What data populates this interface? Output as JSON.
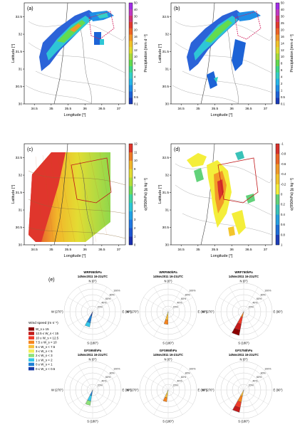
{
  "panels": [
    {
      "label": "(a)",
      "xlabel": "Longitude [°]",
      "ylabel": "Latitude [°]",
      "xticks": [
        "34.5",
        "35",
        "35.5",
        "36",
        "36.5",
        "37"
      ],
      "yticks": [
        "30",
        "30.5",
        "31",
        "31.5",
        "32",
        "32.5"
      ],
      "colorbar": {
        "label": "Precipitation [mm d⁻¹]",
        "ticks": [
          "0.1",
          "0.5",
          "1",
          "2",
          "4",
          "6",
          "8",
          "10",
          "12",
          "14",
          "16",
          "20",
          "25",
          "30",
          "40",
          "50"
        ],
        "colors": [
          "#1a3cb8",
          "#1d63d6",
          "#1f8ee6",
          "#27b6e6",
          "#35d0c7",
          "#3cd88b",
          "#63db4f",
          "#a7dc3a",
          "#dede30",
          "#f2c32a",
          "#f2962a",
          "#ee6326",
          "#e23a30",
          "#d43476",
          "#c13ac2",
          "#a22ee6"
        ]
      }
    },
    {
      "label": "(b)",
      "xlabel": "Longitude [°]",
      "ylabel": "Latitude [°]",
      "xticks": [
        "34.5",
        "35",
        "35.5",
        "36",
        "36.5",
        "37"
      ],
      "yticks": [
        "30",
        "30.5",
        "31",
        "31.5",
        "32",
        "32.5"
      ],
      "colorbar": {
        "label": "Precipitation [mm d⁻¹]",
        "ticks": [
          "0.1",
          "0.5",
          "1",
          "2",
          "4",
          "6",
          "8",
          "10",
          "12",
          "14",
          "16",
          "20",
          "25",
          "30",
          "40",
          "50"
        ],
        "colors": [
          "#1a3cb8",
          "#1d63d6",
          "#1f8ee6",
          "#27b6e6",
          "#35d0c7",
          "#3cd88b",
          "#63db4f",
          "#a7dc3a",
          "#dede30",
          "#f2c32a",
          "#f2962a",
          "#ee6326",
          "#e23a30",
          "#d43476",
          "#c13ac2",
          "#a22ee6"
        ]
      }
    },
    {
      "label": "(c)",
      "xlabel": "Longitude [°]",
      "ylabel": "Latitude [°]",
      "xticks": [
        "34.5",
        "35",
        "35.5",
        "36",
        "36.5",
        "37"
      ],
      "yticks": [
        "30",
        "30.5",
        "31",
        "31.5",
        "32",
        "32.5"
      ],
      "colorbar": {
        "label": "q(950hPa) [g kg⁻¹]",
        "ticks": [
          "0",
          "1",
          "2",
          "3",
          "4",
          "5",
          "6",
          "7",
          "8",
          "9",
          "10",
          "11",
          "12"
        ],
        "colors": [
          "#1a2fb0",
          "#1d55d0",
          "#2078e2",
          "#22a2e6",
          "#2ec6d6",
          "#3fd6a2",
          "#6edb58",
          "#b3dd3a",
          "#e3dc33",
          "#f2b62a",
          "#ee7c26",
          "#e0362c"
        ]
      }
    },
    {
      "label": "(d)",
      "xlabel": "Longitude [°]",
      "ylabel": "Latitude [°]",
      "xticks": [
        "34.5",
        "35",
        "35.5",
        "36",
        "36.5",
        "37"
      ],
      "yticks": [
        "30",
        "30.5",
        "31",
        "31.5",
        "32",
        "32.5"
      ],
      "colorbar": {
        "label": "q(950hPa) [g kg⁻¹]",
        "ticks": [
          "1",
          "0.8",
          "0.6",
          "0.4",
          "0.2",
          "0",
          "-0.2",
          "-0.4",
          "-0.6",
          "-0.8",
          "-1"
        ],
        "colors": [
          "#1e3fb8",
          "#1f6fd8",
          "#26a0e0",
          "#3ac2b8",
          "#62d27a",
          "#f4ee3a",
          "#f3c52c",
          "#f29a28",
          "#ec6526",
          "#d8322c"
        ]
      }
    }
  ],
  "rose_panel": {
    "label": "(e)",
    "legend": {
      "title": "Wind speed (m s⁻¹)",
      "items": [
        {
          "label": "W_s ≥ 15",
          "color": "#8b0000"
        },
        {
          "label": "12.5 ≤ W_s < 15",
          "color": "#c41a1a"
        },
        {
          "label": "10 ≤ W_s < 12.5",
          "color": "#ee3b2a"
        },
        {
          "label": "7.5 ≤ W_s < 10",
          "color": "#f6841e"
        },
        {
          "label": "5 ≤ W_s < 7.5",
          "color": "#f9c03a"
        },
        {
          "label": "3 ≤ W_s < 5",
          "color": "#f3ee58"
        },
        {
          "label": "2 ≤ W_s < 3",
          "color": "#8fe27a"
        },
        {
          "label": "1 ≤ W_s < 2",
          "color": "#35c7e9"
        },
        {
          "label": "0 ≤ W_s < 1",
          "color": "#1e7fd6"
        },
        {
          "label": "0 ≤ W_s < 0.5",
          "color": "#1a3ba6"
        }
      ]
    },
    "roses": [
      {
        "title1": "WRF950hPa",
        "title2": "14Nov2011 16-21UTC",
        "rings": [
          "20%",
          "40%",
          "60%",
          "80%",
          "100%"
        ],
        "compass": {
          "n": "N (0°)",
          "e": "E (90°)",
          "s": "S (180°)",
          "w": "W (270°)"
        }
      },
      {
        "title1": "WRF950hPa",
        "title2": "14Nov2011 16-21UTC",
        "rings": [
          "20%",
          "40%",
          "60%",
          "80%",
          "100%"
        ],
        "compass": {
          "n": "N (0°)",
          "e": "E (90°)",
          "s": "S (180°)",
          "w": "W (270°)"
        }
      },
      {
        "title1": "WRF750hPa",
        "title2": "14Nov2011 16-21UTC",
        "rings": [
          "20%",
          "40%",
          "60%",
          "80%",
          "100%"
        ],
        "compass": {
          "n": "N (0°)",
          "e": "E (90°)",
          "s": "S (180°)",
          "w": "W (270°)"
        }
      },
      {
        "title1": "GFS950hPa",
        "title2": "14Nov2011 16-21UTC",
        "rings": [
          "20%",
          "40%",
          "60%",
          "80%",
          "100%"
        ],
        "compass": {
          "n": "N (0°)",
          "e": "E (90°)",
          "s": "S (180°)",
          "w": "W (270°)"
        }
      },
      {
        "title1": "GFS950hPa",
        "title2": "14Nov2011 16-21UTC",
        "rings": [
          "20%",
          "40%",
          "60%",
          "80%",
          "100%"
        ],
        "compass": {
          "n": "N (0°)",
          "e": "E (90°)",
          "s": "S (180°)",
          "w": "W (270°)"
        }
      },
      {
        "title1": "GFS750hPa",
        "title2": "14Nov2011 16-21UTC",
        "rings": [
          "20%",
          "40%",
          "60%",
          "80%",
          "100%"
        ],
        "compass": {
          "n": "N (0°)",
          "e": "E (90°)",
          "s": "S (180°)",
          "w": "W (270°)"
        }
      }
    ]
  },
  "chart_data": [
    {
      "type": "heatmap",
      "panel": "(a)",
      "xlabel": "Longitude [°]",
      "ylabel": "Latitude [°]",
      "xlim": [
        34.2,
        37.2
      ],
      "ylim": [
        30,
        32.9
      ],
      "colorbar_label": "Precipitation [mm d⁻¹]"
    },
    {
      "type": "heatmap",
      "panel": "(b)",
      "xlabel": "Longitude [°]",
      "ylabel": "Latitude [°]",
      "xlim": [
        34.2,
        37.2
      ],
      "ylim": [
        30,
        32.9
      ],
      "colorbar_label": "Precipitation [mm d⁻¹]"
    },
    {
      "type": "heatmap",
      "panel": "(c)",
      "xlabel": "Longitude [°]",
      "ylabel": "Latitude [°]",
      "xlim": [
        34.2,
        37.2
      ],
      "ylim": [
        30,
        32.9
      ],
      "colorbar_label": "q(950hPa) [g kg⁻¹]"
    },
    {
      "type": "heatmap",
      "panel": "(d)",
      "xlabel": "Longitude [°]",
      "ylabel": "Latitude [°]",
      "xlim": [
        34.2,
        37.2
      ],
      "ylim": [
        30,
        32.9
      ],
      "colorbar_label": "q(950hPa) [g kg⁻¹]"
    },
    {
      "type": "wind-rose",
      "panel": "(e)",
      "roses": [
        {
          "name": "WRF950hPa",
          "direction_deg": 200,
          "frequency_pct": 55,
          "segments_pct": [
            15,
            25,
            15
          ],
          "segment_colors": [
            "#1a3ba6",
            "#1e7fd6",
            "#35c7e9"
          ]
        },
        {
          "name": "WRF950hPa",
          "direction_deg": 190,
          "frequency_pct": 45,
          "segments_pct": [
            12,
            18,
            15
          ],
          "segment_colors": [
            "#f3ee58",
            "#f9c03a",
            "#f6841e"
          ]
        },
        {
          "name": "WRF750hPa",
          "direction_deg": 200,
          "frequency_pct": 85,
          "segments_pct": [
            20,
            25,
            22,
            18
          ],
          "segment_colors": [
            "#f6841e",
            "#ee3b2a",
            "#c41a1a",
            "#8b0000"
          ]
        },
        {
          "name": "GFS950hPa",
          "direction_deg": 198,
          "frequency_pct": 55,
          "segments_pct": [
            20,
            20,
            15
          ],
          "segment_colors": [
            "#1e7fd6",
            "#35c7e9",
            "#8fe27a"
          ]
        },
        {
          "name": "GFS950hPa",
          "direction_deg": 196,
          "frequency_pct": 42,
          "segments_pct": [
            14,
            14,
            14
          ],
          "segment_colors": [
            "#f3ee58",
            "#f9c03a",
            "#f6841e"
          ]
        },
        {
          "name": "GFS750hPa",
          "direction_deg": 200,
          "frequency_pct": 80,
          "segments_pct": [
            22,
            22,
            20,
            16
          ],
          "segment_colors": [
            "#f9c03a",
            "#f6841e",
            "#ee3b2a",
            "#c41a1a"
          ]
        }
      ]
    }
  ]
}
